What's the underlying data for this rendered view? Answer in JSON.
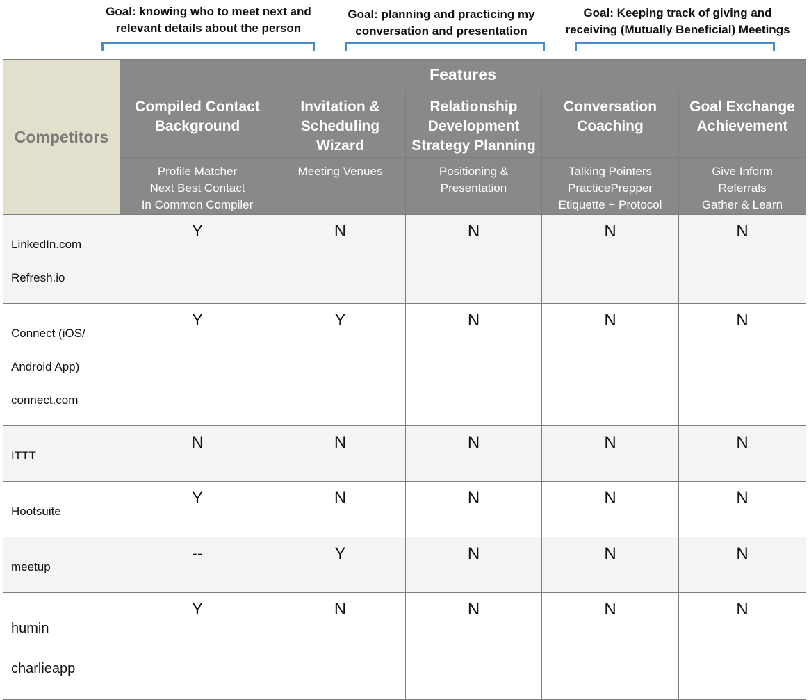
{
  "goals": [
    {
      "line1": "Goal: knowing who to meet next and",
      "line2": "relevant details about the person"
    },
    {
      "line1": "Goal: planning and practicing my",
      "line2": "conversation and presentation"
    },
    {
      "line1": "Goal: Keeping track of giving and",
      "line2": "receiving (Mutually Beneficial) Meetings"
    }
  ],
  "table": {
    "competitors_label": "Competitors",
    "features_label": "Features",
    "columns": [
      {
        "title": "Compiled Contact Background",
        "subs": [
          "Profile Matcher",
          "Next Best Contact",
          "In Common Compiler"
        ]
      },
      {
        "title": "Invitation & Scheduling Wizard",
        "subs": [
          "Meeting Venues"
        ]
      },
      {
        "title": "Relationship Development Strategy Planning",
        "subs": [
          "Positioning &",
          "Presentation"
        ]
      },
      {
        "title": "Conversation Coaching",
        "subs": [
          "Talking Pointers",
          "PracticePrepper",
          "Etiquette + Protocol"
        ]
      },
      {
        "title": "Goal Exchange Achievement",
        "subs": [
          "Give Inform",
          "Referrals",
          "Gather & Learn"
        ]
      }
    ],
    "rows": [
      {
        "competitor": [
          "LinkedIn.com",
          "Refresh.io"
        ],
        "values": [
          "Y",
          "N",
          "N",
          "N",
          "N"
        ]
      },
      {
        "competitor": [
          "Connect (iOS/",
          "Android App)",
          "connect.com"
        ],
        "values": [
          "Y",
          "Y",
          "N",
          "N",
          "N"
        ]
      },
      {
        "competitor": [
          "ITTT"
        ],
        "values": [
          "N",
          "N",
          "N",
          "N",
          "N"
        ]
      },
      {
        "competitor": [
          "Hootsuite"
        ],
        "values": [
          "Y",
          "N",
          "N",
          "N",
          "N"
        ]
      },
      {
        "competitor": [
          "meetup"
        ],
        "values": [
          "--",
          "Y",
          "N",
          "N",
          "N"
        ]
      },
      {
        "competitor": [
          "humin",
          "charlieapp"
        ],
        "values": [
          "Y",
          "N",
          "N",
          "N",
          "N"
        ]
      }
    ]
  }
}
